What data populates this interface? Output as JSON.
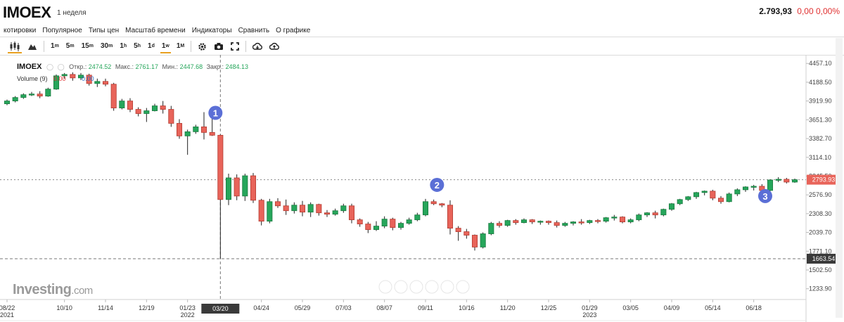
{
  "header": {
    "symbol": "IMOEX",
    "period": "1 неделя",
    "last_price": "2.793,93",
    "change": "0,00",
    "change_pct": "0,00%"
  },
  "menu": [
    "котировки",
    "Популярное",
    "Типы цен",
    "Масштаб времени",
    "Индикаторы",
    "Сравнить",
    "О графике"
  ],
  "toolbar": {
    "timeframes": [
      {
        "base": "1",
        "sup": "m"
      },
      {
        "base": "5",
        "sup": "m"
      },
      {
        "base": "15",
        "sup": "m"
      },
      {
        "base": "30",
        "sup": "m"
      },
      {
        "base": "1",
        "sup": "h"
      },
      {
        "base": "5",
        "sup": "h"
      },
      {
        "base": "1",
        "sup": "d"
      },
      {
        "base": "1",
        "sup": "w"
      },
      {
        "base": "1",
        "sup": "M"
      }
    ],
    "active_timeframe": "1w"
  },
  "legend": {
    "ticker": "IMOEX",
    "open_label": "Откр.:",
    "open": "2474.52",
    "high_label": "Макс.:",
    "high": "2761.17",
    "low_label": "Мин.:",
    "low": "2447.68",
    "close_label": "Закр.:",
    "close": "2484.13",
    "volume_label": "Volume (9)",
    "volume_value_1": "0.00",
    "volume_value_2": "0.00"
  },
  "watermark": {
    "brand": "Investing",
    "suffix": ".com"
  },
  "colors": {
    "up": "#26a65b",
    "down": "#e8645a",
    "up_border": "#1a7a3f",
    "down_border": "#b33a30",
    "marker": "#5b6fd6",
    "price_tag": "#e8645a",
    "crosshair_tag": "#3a3a3a"
  },
  "chart_data": {
    "type": "candlestick",
    "y_axis_ticks": [
      "4457.10",
      "4188.50",
      "3919.90",
      "3651.30",
      "3382.70",
      "3114.10",
      "2845.50",
      "2576.90",
      "2308.30",
      "2039.70",
      "1771.10",
      "1502.50",
      "1233.90"
    ],
    "y_range": [
      1100,
      4540
    ],
    "x_axis_labels": [
      {
        "top": "08/22",
        "bottom": "2021",
        "index": 0
      },
      {
        "top": "10/10",
        "bottom": "",
        "index": 7
      },
      {
        "top": "11/14",
        "bottom": "",
        "index": 12
      },
      {
        "top": "12/19",
        "bottom": "",
        "index": 17
      },
      {
        "top": "01/23",
        "bottom": "2022",
        "index": 22
      },
      {
        "top": "04/24",
        "bottom": "",
        "index": 31
      },
      {
        "top": "05/29",
        "bottom": "",
        "index": 36
      },
      {
        "top": "07/03",
        "bottom": "",
        "index": 41
      },
      {
        "top": "08/07",
        "bottom": "",
        "index": 46
      },
      {
        "top": "09/11",
        "bottom": "",
        "index": 51
      },
      {
        "top": "10/16",
        "bottom": "",
        "index": 56
      },
      {
        "top": "11/20",
        "bottom": "",
        "index": 61
      },
      {
        "top": "12/25",
        "bottom": "",
        "index": 66
      },
      {
        "top": "01/29",
        "bottom": "2023",
        "index": 71
      },
      {
        "top": "03/05",
        "bottom": "",
        "index": 76
      },
      {
        "top": "04/09",
        "bottom": "",
        "index": 81
      },
      {
        "top": "05/14",
        "bottom": "",
        "index": 86
      },
      {
        "top": "06/18",
        "bottom": "",
        "index": 91
      }
    ],
    "crosshair": {
      "x_label": "03/20",
      "x_index": 26,
      "y_value": 1663.54,
      "y_label": "1663.54"
    },
    "last_price": {
      "value": 2793.93,
      "label": "2793.93"
    },
    "annotations": [
      {
        "label": "1",
        "index": 26,
        "y": 3750
      },
      {
        "label": "2",
        "index": 53,
        "y": 2720
      },
      {
        "label": "3",
        "index": 93,
        "y": 2560
      }
    ],
    "candles": [
      [
        3880,
        3940,
        3860,
        3920
      ],
      [
        3920,
        3990,
        3900,
        3970
      ],
      [
        3970,
        4030,
        3950,
        4010
      ],
      [
        4010,
        4050,
        3990,
        4020
      ],
      [
        4020,
        4060,
        3960,
        3990
      ],
      [
        3990,
        4110,
        3980,
        4090
      ],
      [
        4090,
        4300,
        4080,
        4280
      ],
      [
        4280,
        4320,
        4240,
        4300
      ],
      [
        4300,
        4330,
        4210,
        4250
      ],
      [
        4250,
        4320,
        4220,
        4290
      ],
      [
        4290,
        4310,
        4140,
        4170
      ],
      [
        4170,
        4240,
        4120,
        4200
      ],
      [
        4200,
        4240,
        4130,
        4160
      ],
      [
        4160,
        4180,
        3780,
        3820
      ],
      [
        3820,
        3950,
        3800,
        3920
      ],
      [
        3920,
        3960,
        3760,
        3800
      ],
      [
        3800,
        3830,
        3700,
        3740
      ],
      [
        3740,
        3820,
        3620,
        3780
      ],
      [
        3780,
        3880,
        3770,
        3850
      ],
      [
        3850,
        3920,
        3740,
        3800
      ],
      [
        3800,
        3850,
        3550,
        3600
      ],
      [
        3600,
        3660,
        3380,
        3420
      ],
      [
        3420,
        3510,
        3150,
        3480
      ],
      [
        3480,
        3580,
        3450,
        3550
      ],
      [
        3550,
        3760,
        3370,
        3470
      ],
      [
        3470,
        3690,
        3420,
        3430
      ],
      [
        3430,
        3440,
        1663.54,
        2510
      ],
      [
        2510,
        2880,
        2430,
        2820
      ],
      [
        2820,
        2870,
        2500,
        2560
      ],
      [
        2560,
        2880,
        2490,
        2850
      ],
      [
        2850,
        2890,
        2460,
        2500
      ],
      [
        2500,
        2520,
        2140,
        2200
      ],
      [
        2200,
        2520,
        2170,
        2480
      ],
      [
        2480,
        2530,
        2390,
        2420
      ],
      [
        2420,
        2510,
        2290,
        2350
      ],
      [
        2350,
        2470,
        2310,
        2430
      ],
      [
        2430,
        2490,
        2270,
        2330
      ],
      [
        2330,
        2470,
        2260,
        2440
      ],
      [
        2440,
        2450,
        2280,
        2320
      ],
      [
        2320,
        2360,
        2260,
        2300
      ],
      [
        2300,
        2380,
        2280,
        2350
      ],
      [
        2350,
        2450,
        2320,
        2420
      ],
      [
        2420,
        2450,
        2170,
        2220
      ],
      [
        2220,
        2240,
        2120,
        2160
      ],
      [
        2160,
        2190,
        2030,
        2080
      ],
      [
        2080,
        2200,
        2060,
        2130
      ],
      [
        2130,
        2270,
        2100,
        2230
      ],
      [
        2230,
        2250,
        2070,
        2110
      ],
      [
        2110,
        2190,
        2080,
        2170
      ],
      [
        2170,
        2250,
        2150,
        2220
      ],
      [
        2220,
        2320,
        2200,
        2290
      ],
      [
        2290,
        2520,
        2270,
        2480
      ],
      [
        2480,
        2510,
        2430,
        2450
      ],
      [
        2450,
        2460,
        2400,
        2430
      ],
      [
        2430,
        2500,
        2010,
        2100
      ],
      [
        2100,
        2130,
        1920,
        2050
      ],
      [
        2050,
        2090,
        1950,
        2000
      ],
      [
        2000,
        2010,
        1780,
        1830
      ],
      [
        1830,
        2040,
        1810,
        2020
      ],
      [
        2020,
        2190,
        2000,
        2170
      ],
      [
        2170,
        2200,
        2110,
        2140
      ],
      [
        2140,
        2220,
        2120,
        2210
      ],
      [
        2210,
        2230,
        2150,
        2180
      ],
      [
        2180,
        2240,
        2170,
        2220
      ],
      [
        2220,
        2230,
        2160,
        2190
      ],
      [
        2190,
        2210,
        2150,
        2200
      ],
      [
        2200,
        2210,
        2150,
        2180
      ],
      [
        2180,
        2210,
        2110,
        2140
      ],
      [
        2140,
        2190,
        2120,
        2170
      ],
      [
        2170,
        2200,
        2140,
        2190
      ],
      [
        2190,
        2230,
        2150,
        2180
      ],
      [
        2180,
        2220,
        2160,
        2210
      ],
      [
        2210,
        2230,
        2170,
        2200
      ],
      [
        2200,
        2260,
        2180,
        2250
      ],
      [
        2250,
        2290,
        2210,
        2260
      ],
      [
        2260,
        2270,
        2170,
        2190
      ],
      [
        2190,
        2240,
        2170,
        2220
      ],
      [
        2220,
        2310,
        2200,
        2290
      ],
      [
        2290,
        2330,
        2260,
        2320
      ],
      [
        2320,
        2350,
        2240,
        2290
      ],
      [
        2290,
        2380,
        2270,
        2370
      ],
      [
        2370,
        2460,
        2350,
        2450
      ],
      [
        2450,
        2520,
        2430,
        2510
      ],
      [
        2510,
        2560,
        2490,
        2550
      ],
      [
        2550,
        2620,
        2520,
        2610
      ],
      [
        2610,
        2640,
        2570,
        2630
      ],
      [
        2630,
        2650,
        2500,
        2530
      ],
      [
        2530,
        2560,
        2450,
        2480
      ],
      [
        2480,
        2610,
        2470,
        2590
      ],
      [
        2590,
        2670,
        2560,
        2650
      ],
      [
        2650,
        2700,
        2620,
        2690
      ],
      [
        2690,
        2720,
        2640,
        2700
      ],
      [
        2700,
        2730,
        2600,
        2640
      ],
      [
        2640,
        2800,
        2630,
        2790
      ],
      [
        2790,
        2830,
        2760,
        2800
      ],
      [
        2800,
        2820,
        2740,
        2760
      ],
      [
        2760,
        2810,
        2750,
        2793.93
      ]
    ]
  }
}
